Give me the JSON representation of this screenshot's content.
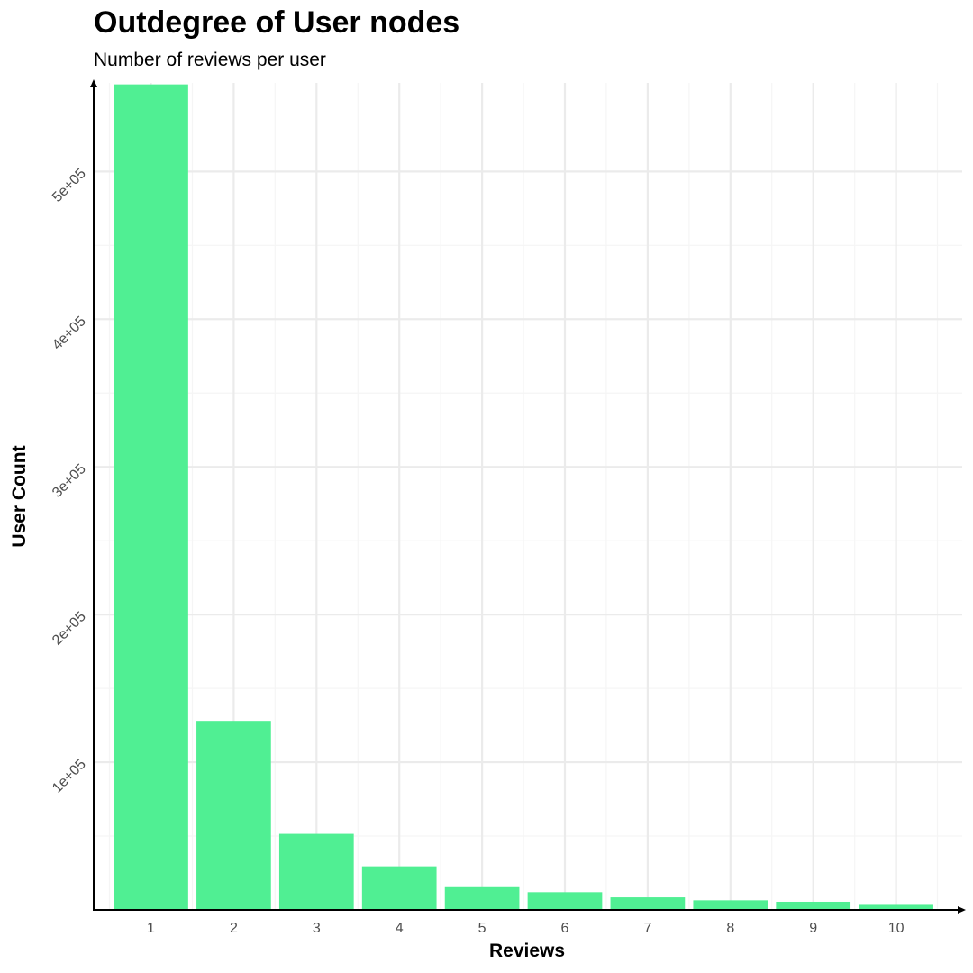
{
  "chart_data": {
    "type": "bar",
    "title": "Outdegree of User nodes",
    "subtitle": "Number of reviews per user",
    "xlabel": "Reviews",
    "ylabel": "User Count",
    "categories": [
      "1",
      "2",
      "3",
      "4",
      "5",
      "6",
      "7",
      "8",
      "9",
      "10"
    ],
    "values": [
      559000,
      128000,
      51500,
      29500,
      16000,
      12000,
      8500,
      6500,
      5500,
      4000
    ],
    "ylim": [
      0,
      560000
    ],
    "yticks": [
      100000,
      200000,
      300000,
      400000,
      500000
    ],
    "ytick_labels": [
      "1e+05",
      "2e+05",
      "3e+05",
      "4e+05",
      "5e+05"
    ],
    "grid": true,
    "colors": {
      "bar": "#50ef93",
      "grid_major": "#ebebeb",
      "grid_minor": "#f5f5f5",
      "axis": "#000000",
      "tick_label": "#4d4d4d"
    }
  }
}
